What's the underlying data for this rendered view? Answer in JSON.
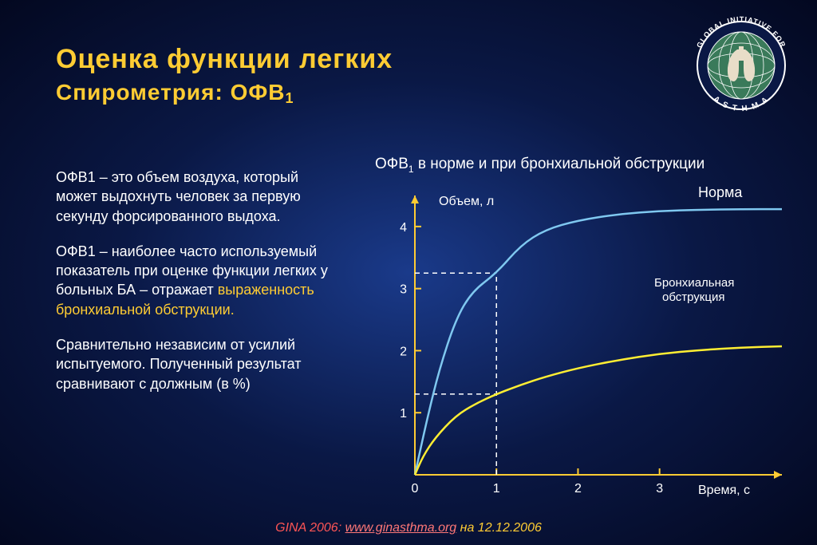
{
  "title": {
    "main": "Оценка функции легких",
    "sub_prefix": "Спирометрия: ОФВ",
    "sub_subscript": "1"
  },
  "paragraphs": {
    "p1": "ОФВ1 – это объем воздуха, который может выдохнуть человек за первую секунду форсированного выдоха.",
    "p2_a": "ОФВ1 – наиболее часто используемый показатель при оценке функции легких у больных БА – отражает ",
    "p2_hl": "выраженность бронхиальной обструкции.",
    "p3": "Сравнительно независим от усилий испытуемого. Полученный результат сравнивают с должным (в %)"
  },
  "chart": {
    "title_prefix": "ОФВ",
    "title_sub": "1",
    "title_rest": " в норме и при бронхиальной обструкции",
    "ylabel": "Объем, л",
    "xlabel": "Время, с",
    "xlim": [
      0,
      4.5
    ],
    "ylim": [
      0,
      4.5
    ],
    "xticks": [
      0,
      1,
      2,
      3
    ],
    "yticks": [
      1,
      2,
      3,
      4
    ],
    "axis_color": "#ffcc33",
    "axis_width": 2,
    "tick_fontsize": 16,
    "label_fontsize": 16,
    "background": "transparent",
    "dashed_color": "#ffffff",
    "dashed_pattern": "6,5",
    "curves": {
      "normal": {
        "label": "Норма",
        "color": "#7fc8f0",
        "width": 2.5,
        "data": [
          [
            0,
            0
          ],
          [
            0.15,
            0.9
          ],
          [
            0.3,
            1.7
          ],
          [
            0.5,
            2.5
          ],
          [
            0.7,
            2.95
          ],
          [
            1,
            3.25
          ],
          [
            1.3,
            3.7
          ],
          [
            1.6,
            3.95
          ],
          [
            2,
            4.1
          ],
          [
            2.5,
            4.2
          ],
          [
            3,
            4.25
          ],
          [
            3.5,
            4.27
          ],
          [
            4,
            4.28
          ],
          [
            4.5,
            4.28
          ]
        ]
      },
      "obstruction": {
        "label_line1": "Бронхиальная",
        "label_line2": "обструкция",
        "color": "#ffee33",
        "width": 2.5,
        "data": [
          [
            0,
            0
          ],
          [
            0.1,
            0.3
          ],
          [
            0.25,
            0.6
          ],
          [
            0.5,
            0.95
          ],
          [
            0.75,
            1.15
          ],
          [
            1,
            1.3
          ],
          [
            1.3,
            1.45
          ],
          [
            1.6,
            1.58
          ],
          [
            2,
            1.72
          ],
          [
            2.5,
            1.85
          ],
          [
            3,
            1.95
          ],
          [
            3.5,
            2.01
          ],
          [
            4,
            2.05
          ],
          [
            4.5,
            2.07
          ]
        ]
      }
    },
    "guide_lines": [
      {
        "type": "v",
        "x": 1,
        "y_from": 0,
        "y_to": 3.25
      },
      {
        "type": "h",
        "y": 3.25,
        "x_from": 0,
        "x_to": 1
      },
      {
        "type": "h",
        "y": 1.3,
        "x_from": 0,
        "x_to": 1
      }
    ]
  },
  "footer": {
    "source": "GINA 2006: ",
    "url": "www.ginasthma.org",
    "date": " на 12.12.2006"
  },
  "logo": {
    "top_text": "GLOBAL INITIATIVE FOR",
    "bottom_text": "A S T H M A",
    "globe_color": "#3a7a5a",
    "border_color": "#ffffff",
    "lung_color": "#e8ddc8"
  }
}
